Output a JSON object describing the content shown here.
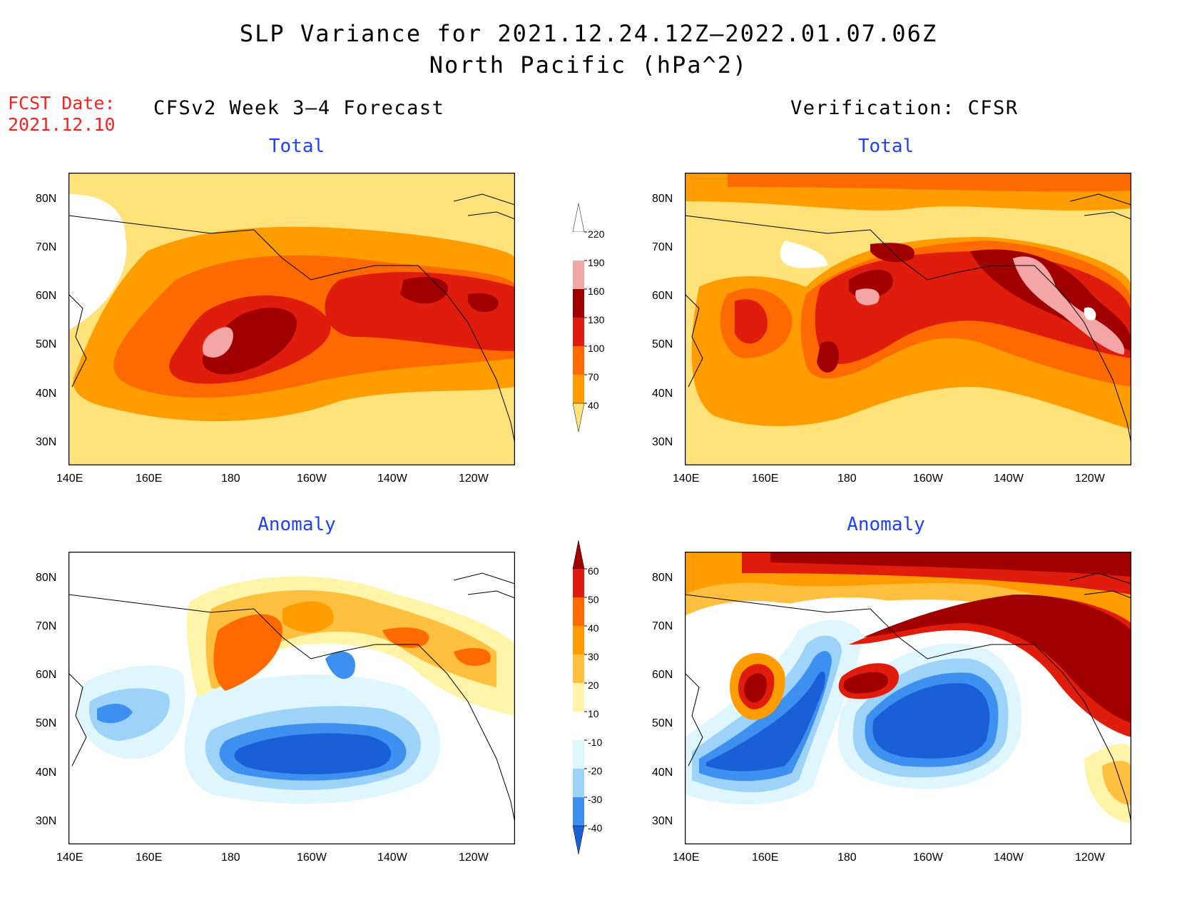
{
  "title": {
    "line1": "SLP Variance for 2021.12.24.12Z–2022.01.07.06Z",
    "line2": "North Pacific (hPa^2)"
  },
  "fcst": {
    "label": "FCST Date:",
    "date": "2021.12.10"
  },
  "columns": {
    "left": "CFSv2 Week 3–4 Forecast",
    "right": "Verification: CFSR"
  },
  "panels": {
    "top_left": "Total",
    "top_right": "Total",
    "bottom_left": "Anomaly",
    "bottom_right": "Anomaly"
  },
  "axes": {
    "lat_labels": [
      "80N",
      "70N",
      "60N",
      "50N",
      "40N",
      "30N"
    ],
    "lon_labels": [
      "140E",
      "160E",
      "180",
      "160W",
      "140W",
      "120W"
    ]
  },
  "colorbars": {
    "total": {
      "labels": [
        "220",
        "190",
        "160",
        "130",
        "100",
        "70",
        "40"
      ],
      "colors": [
        "#ffffff",
        "#f4a6a6",
        "#a00000",
        "#e01c0c",
        "#ff6a00",
        "#ff9d00",
        "#ffe37a"
      ]
    },
    "anomaly": {
      "labels": [
        "60",
        "50",
        "40",
        "30",
        "20",
        "10",
        "-10",
        "-20",
        "-30",
        "-40"
      ],
      "colors": [
        "#a00000",
        "#e01c0c",
        "#ff6a00",
        "#ff9d00",
        "#ffc040",
        "#fff4a8",
        "#ffffff",
        "#dff6ff",
        "#9dd3f8",
        "#3d8ff0",
        "#1a5fd6"
      ]
    }
  }
}
